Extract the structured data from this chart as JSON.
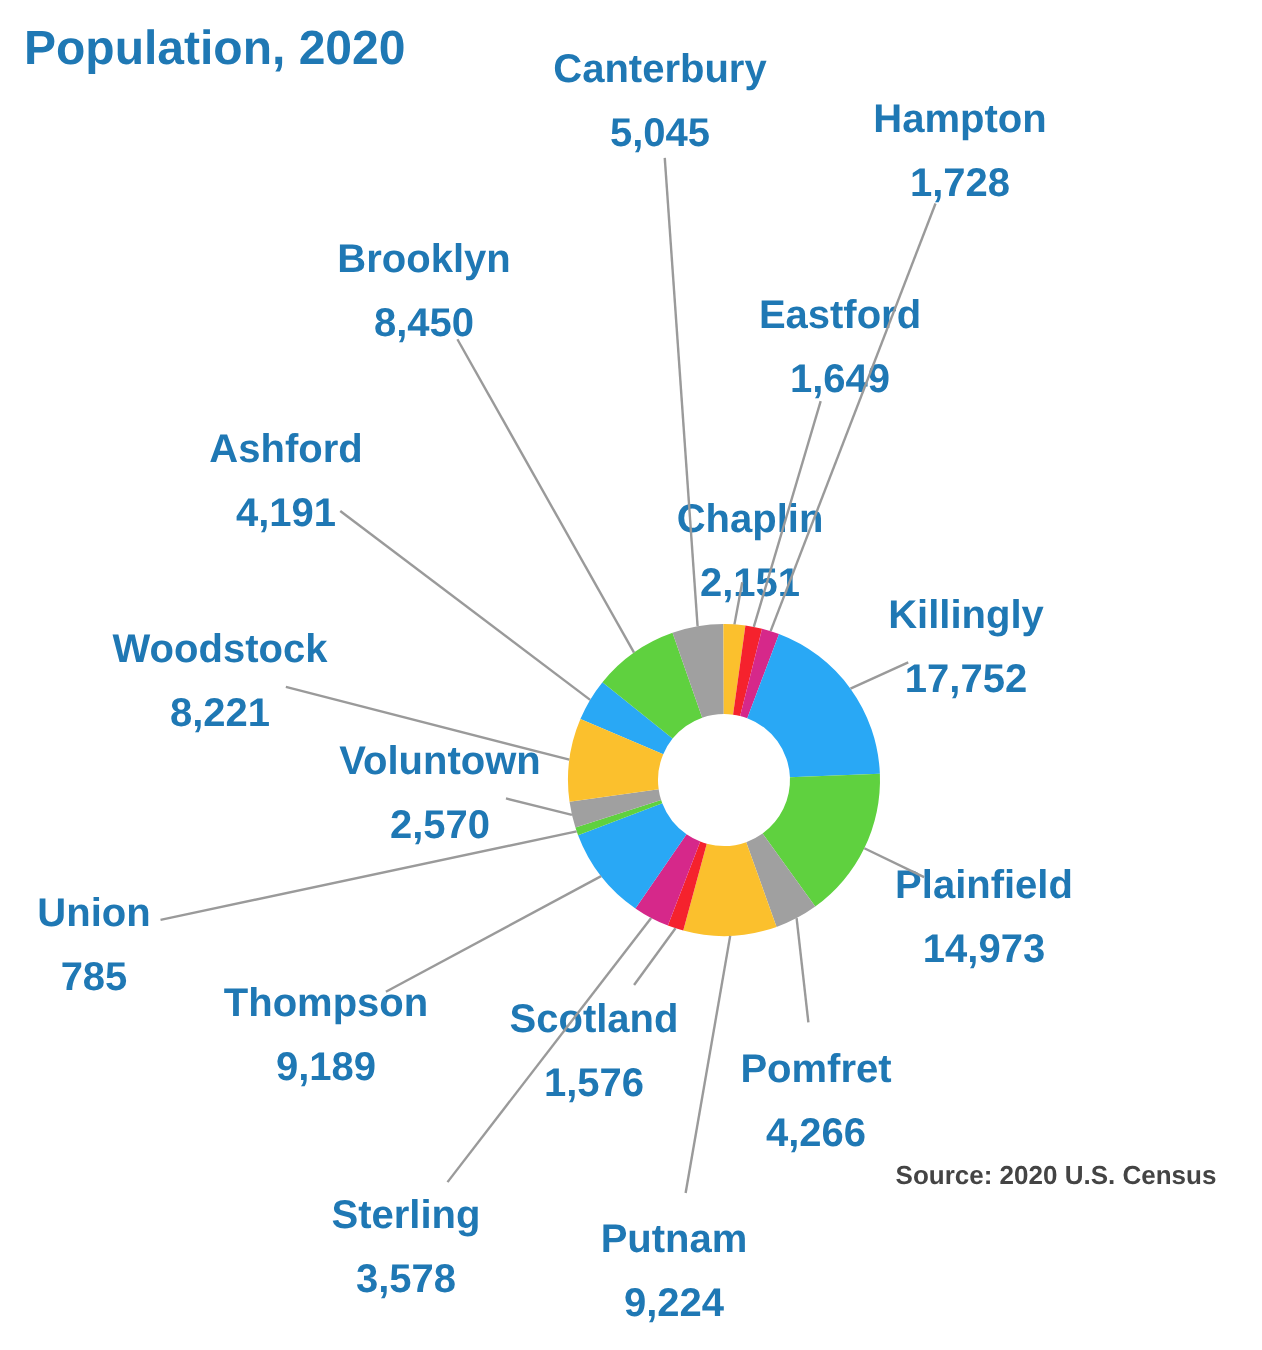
{
  "chart_data": {
    "type": "donut",
    "title": "Population, 2020",
    "categories": [
      "Ashford",
      "Brooklyn",
      "Canterbury",
      "Chaplin",
      "Eastford",
      "Hampton",
      "Killingly",
      "Plainfield",
      "Pomfret",
      "Putnam",
      "Scotland",
      "Sterling",
      "Thompson",
      "Union",
      "Voluntown",
      "Woodstock"
    ],
    "values": [
      4191,
      8450,
      5045,
      2151,
      1649,
      1728,
      17752,
      14973,
      4266,
      9224,
      1576,
      3578,
      9189,
      785,
      2570,
      8221
    ],
    "value_labels": [
      "4,191",
      "8,450",
      "5,045",
      "2,151",
      "1,649",
      "1,728",
      "17,752",
      "14,973",
      "4,266",
      "9,224",
      "1,576",
      "3,578",
      "9,189",
      "785",
      "2,570",
      "8,221"
    ],
    "colors": [
      "#29a8f5",
      "#5fd13f",
      "#a0a0a0",
      "#fbc02d",
      "#f5222d",
      "#d6288a",
      "#29a8f5",
      "#5fd13f",
      "#a0a0a0",
      "#fbc02d",
      "#f5222d",
      "#d6288a",
      "#29a8f5",
      "#5fd13f",
      "#a0a0a0",
      "#fbc02d"
    ],
    "annotations": [
      "Source:  2020 U.S. Census"
    ]
  }
}
